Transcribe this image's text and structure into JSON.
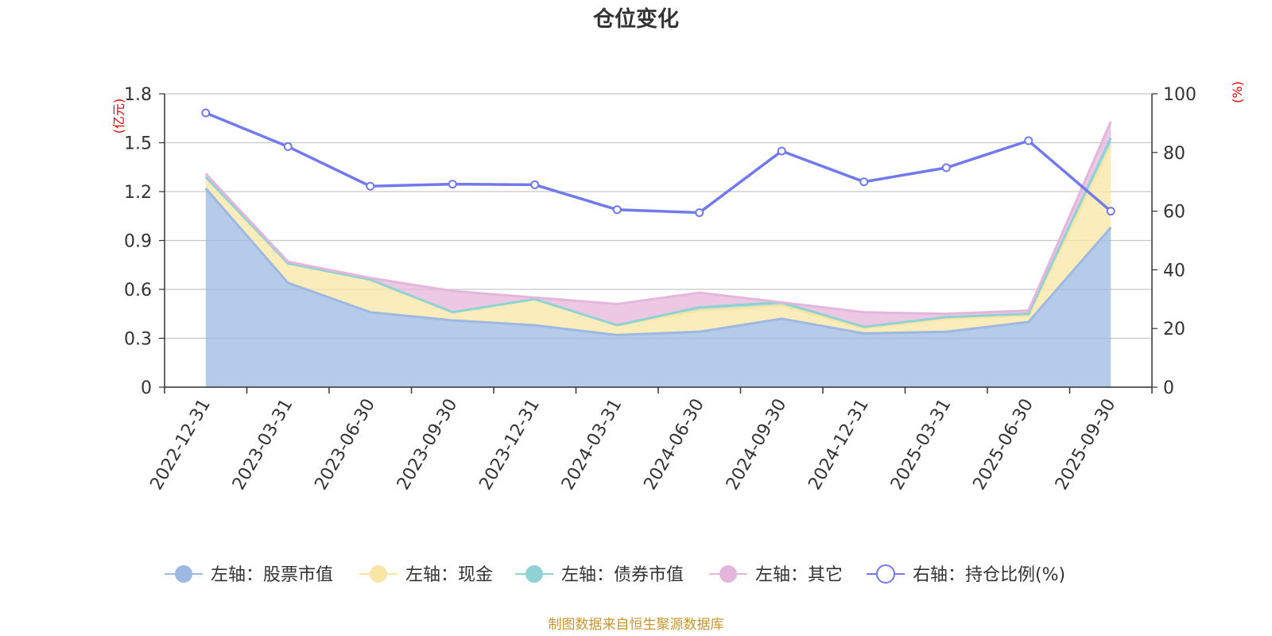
{
  "chart_data": {
    "type": "area",
    "title": "仓位变化",
    "left_axis_unit": "(亿元)",
    "right_axis_unit": "(%)",
    "ylim_left": [
      0,
      1.8
    ],
    "ylim_right": [
      0,
      100
    ],
    "y_ticks_left": [
      "0",
      "0.3",
      "0.6",
      "0.9",
      "1.2",
      "1.5",
      "1.8"
    ],
    "y_ticks_right": [
      "0",
      "20",
      "40",
      "60",
      "80",
      "100"
    ],
    "categories": [
      "2022-12-31",
      "2023-03-31",
      "2023-06-30",
      "2023-09-30",
      "2023-12-31",
      "2024-03-31",
      "2024-06-30",
      "2024-09-30",
      "2024-12-31",
      "2025-03-31",
      "2025-06-30",
      "2025-09-30"
    ],
    "series": [
      {
        "name": "左轴：股票市值",
        "axis": "left",
        "color": "#9db8e1",
        "values": [
          1.22,
          0.64,
          0.46,
          0.41,
          0.38,
          0.32,
          0.34,
          0.42,
          0.33,
          0.34,
          0.4,
          0.98
        ]
      },
      {
        "name": "左轴：现金",
        "axis": "left",
        "color": "#f9e5a5",
        "values": [
          0.07,
          0.12,
          0.2,
          0.05,
          0.16,
          0.06,
          0.13,
          0.08,
          0.03,
          0.08,
          0.04,
          0.5
        ]
      },
      {
        "name": "左轴：债券市值",
        "axis": "left",
        "color": "#8ed2d4",
        "values": [
          0,
          0,
          0,
          0,
          0,
          0,
          0.02,
          0.02,
          0.01,
          0.01,
          0.01,
          0.05
        ]
      },
      {
        "name": "左轴：其它",
        "axis": "left",
        "color": "#e5b6dc",
        "values": [
          0.02,
          0.01,
          0.01,
          0.13,
          0.01,
          0.13,
          0.09,
          0.0,
          0.09,
          0.02,
          0.02,
          0.1
        ]
      },
      {
        "name": "右轴：持仓比例(%)",
        "axis": "right",
        "color": "#7179ec",
        "values": [
          93.5,
          82.0,
          68.5,
          69.2,
          69.0,
          60.5,
          59.5,
          80.5,
          70.0,
          74.8,
          84.0,
          60.0
        ]
      }
    ],
    "footer": "制图数据来自恒生聚源数据库"
  }
}
